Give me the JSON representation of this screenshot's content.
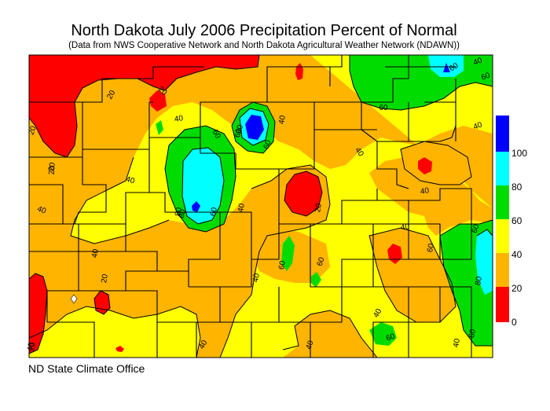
{
  "title": "North Dakota July 2006 Precipitation Percent of Normal",
  "subtitle": "(Data from NWS Cooperative Network and North Dakota Agricultural Weather Network (NDAWN))",
  "credit": "ND State Climate Office",
  "legend": {
    "ticks": [
      "0",
      "20",
      "40",
      "60",
      "80",
      "100"
    ],
    "bands": [
      {
        "range": "0-20",
        "color": "#ff0000"
      },
      {
        "range": "20-40",
        "color": "#ffb400"
      },
      {
        "range": "40-60",
        "color": "#ffff00"
      },
      {
        "range": "60-80",
        "color": "#00dc00"
      },
      {
        "range": "80-100",
        "color": "#00ffff"
      },
      {
        "range": "100+",
        "color": "#0000ff"
      }
    ]
  },
  "contour_labels": [
    "20",
    "20",
    "20",
    "20",
    "40",
    "40",
    "40",
    "40",
    "40",
    "40",
    "40",
    "40",
    "40",
    "40",
    "40",
    "40",
    "40",
    "40",
    "40",
    "40",
    "40",
    "60",
    "60",
    "60",
    "60",
    "60",
    "60",
    "60",
    "60",
    "60",
    "60",
    "60",
    "60",
    "60",
    "80",
    "80",
    "80",
    "80",
    "20",
    "20",
    "20",
    "20"
  ]
}
